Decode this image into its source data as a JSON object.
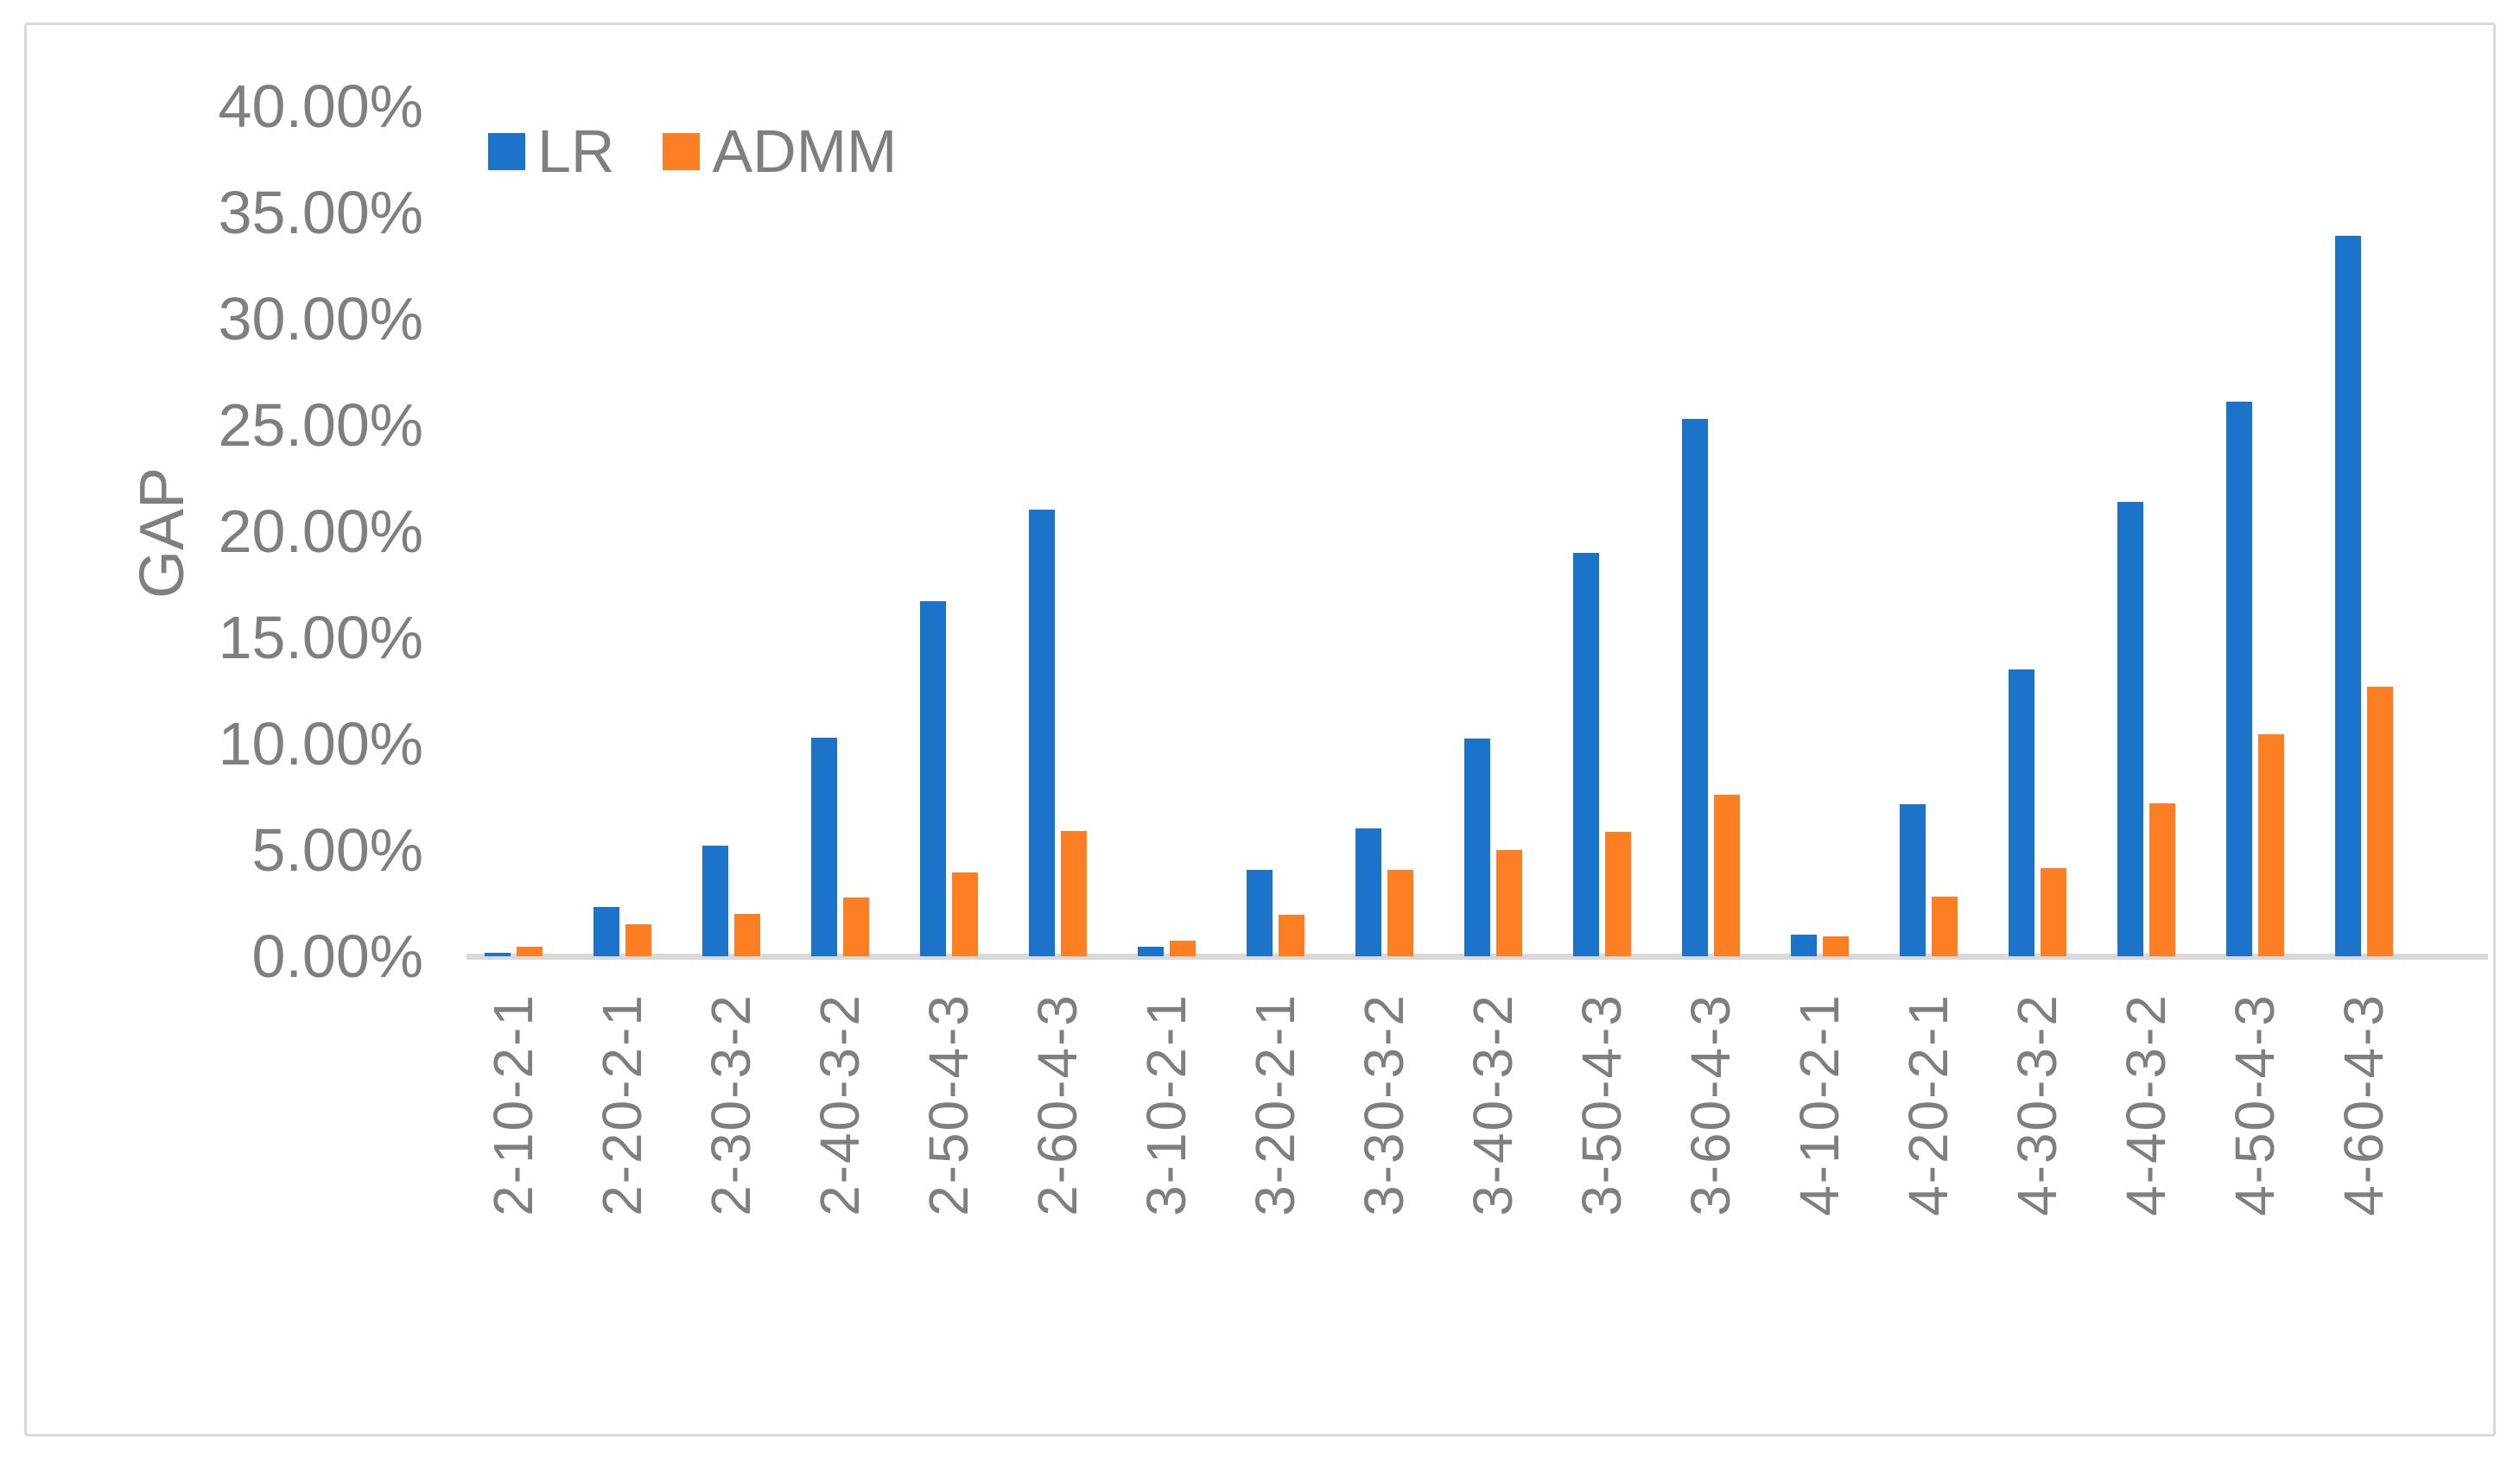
{
  "chart_data": {
    "type": "bar",
    "title": "",
    "xlabel": "",
    "ylabel": "GAP",
    "categories": [
      "2-10-2-1",
      "2-20-2-1",
      "2-30-3-2",
      "2-40-3-2",
      "2-50-4-3",
      "2-60-4-3",
      "3-10-2-1",
      "3-20-2-1",
      "3-30-3-2",
      "3-40-3-2",
      "3-50-4-3",
      "3-60-4-3",
      "4-10-2-1",
      "4-20-2-1",
      "4-30-3-2",
      "4-40-3-2",
      "4-50-4-3",
      "4-60-4-3"
    ],
    "series": [
      {
        "name": "LR",
        "color": "#1b74c9",
        "values": [
          0.15,
          2.3,
          5.2,
          10.3,
          16.7,
          21.0,
          0.45,
          4.05,
          6.0,
          10.25,
          19.0,
          25.3,
          1.0,
          7.15,
          13.5,
          21.4,
          26.1,
          33.9
        ]
      },
      {
        "name": "ADMM",
        "color": "#fd7e23",
        "values": [
          0.45,
          1.5,
          2.0,
          2.75,
          3.95,
          5.9,
          0.75,
          1.95,
          4.05,
          5.0,
          5.85,
          7.6,
          0.95,
          2.8,
          4.15,
          7.2,
          10.45,
          12.7
        ]
      }
    ],
    "unit": "percent",
    "y_axis": {
      "min": 0,
      "max": 40,
      "tick_step": 5,
      "tick_labels": [
        "40.00%",
        "35.00%",
        "30.00%",
        "25.00%",
        "20.00%",
        "15.00%",
        "10.00%",
        "5.00%",
        "0.00%"
      ]
    },
    "legend": {
      "position": "top-left",
      "entries": [
        {
          "label": "LR",
          "color": "#1b74c9"
        },
        {
          "label": "ADMM",
          "color": "#fd7e23"
        }
      ]
    },
    "grid": "off",
    "colors": {
      "axis_line": "#d9d9d9",
      "text": "#7f7f7f",
      "background": "#ffffff",
      "border": "#d9d9d9"
    }
  }
}
